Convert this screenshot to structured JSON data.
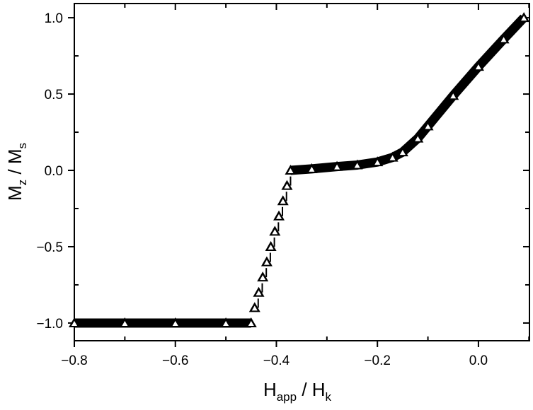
{
  "chart_data": {
    "type": "scatter",
    "title": "",
    "xlabel": {
      "main": "H",
      "sub": "app",
      "sep": " / ",
      "main2": "H",
      "sub2": "k"
    },
    "ylabel": {
      "main": "M",
      "sub": "z",
      "sep": " / ",
      "main2": "M",
      "sub2": "s"
    },
    "xlim": [
      -0.8,
      0.101
    ],
    "ylim": [
      -1.116,
      1.093
    ],
    "xticks": [
      -0.8,
      -0.6,
      -0.4,
      -0.2,
      0.0
    ],
    "xtick_labels": [
      "−0.8",
      "−0.6",
      "−0.4",
      "−0.2",
      "0.0"
    ],
    "yticks": [
      -1.0,
      -0.5,
      0.0,
      0.5,
      1.0
    ],
    "ytick_labels": [
      "−1.0",
      "−0.5",
      "0.0",
      "0.5",
      "1.0"
    ],
    "grid": false,
    "legend": "none",
    "marker": "open-triangle",
    "color": "#000000",
    "series": [
      {
        "name": "Mz/Ms",
        "x": [
          -0.8,
          -0.7,
          -0.6,
          -0.5,
          -0.45,
          -0.443,
          -0.435,
          -0.427,
          -0.419,
          -0.411,
          -0.403,
          -0.395,
          -0.387,
          -0.379,
          -0.372,
          -0.33,
          -0.28,
          -0.24,
          -0.2,
          -0.17,
          -0.15,
          -0.12,
          -0.1,
          -0.05,
          0.0,
          0.05,
          0.09
        ],
        "y": [
          -1.0,
          -1.0,
          -1.0,
          -1.0,
          -1.0,
          -0.9,
          -0.8,
          -0.7,
          -0.6,
          -0.5,
          -0.4,
          -0.3,
          -0.2,
          -0.1,
          0.0,
          0.01,
          0.025,
          0.035,
          0.055,
          0.085,
          0.12,
          0.21,
          0.29,
          0.49,
          0.68,
          0.86,
          1.0
        ]
      }
    ]
  }
}
